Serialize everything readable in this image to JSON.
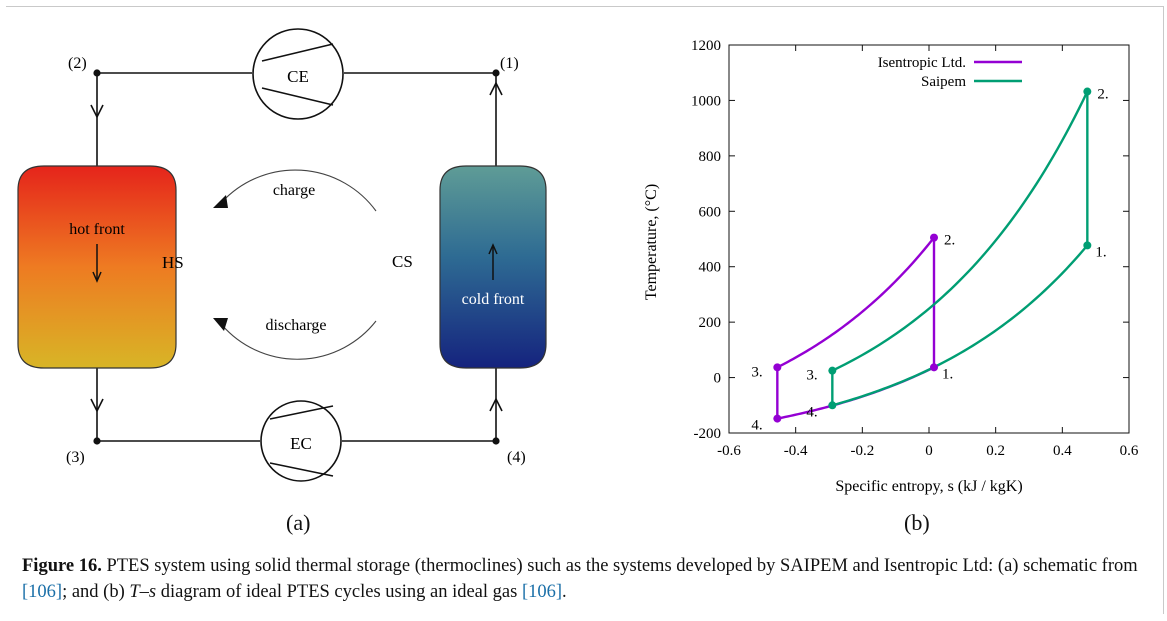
{
  "schematic": {
    "points": {
      "p1": "(1)",
      "p2": "(2)",
      "p3": "(3)",
      "p4": "(4)"
    },
    "ce": "CE",
    "ec": "EC",
    "hs": "HS",
    "cs": "CS",
    "hot_front": "hot front",
    "cold_front": "cold front",
    "charge": "charge",
    "discharge": "discharge",
    "colors": {
      "hot_top": "#e5241b",
      "hot_mid": "#ee7b22",
      "hot_bottom": "#d8b526",
      "cold_top": "#5f9c96",
      "cold_mid": "#2e6b93",
      "cold_bottom": "#15237e"
    }
  },
  "panel_labels": {
    "a": "(a)",
    "b": "(b)"
  },
  "chart_data": {
    "type": "line",
    "xlabel": "Specific entropy, s (kJ / kgK)",
    "ylabel": "Temperature, (°C)",
    "xlim": [
      -0.6,
      0.6
    ],
    "ylim": [
      -200,
      1200
    ],
    "xticks": [
      "-0.6",
      "-0.4",
      "-0.2",
      "0",
      "0.2",
      "0.4",
      "0.6"
    ],
    "yticks": [
      "-200",
      "0",
      "200",
      "400",
      "600",
      "800",
      "1000",
      "1200"
    ],
    "legend_position": "top-left",
    "series": [
      {
        "name": "Isentropic Ltd.",
        "color": "#9400d3",
        "states": [
          {
            "label": "1.",
            "s": 0.015,
            "T": 37
          },
          {
            "label": "2.",
            "s": 0.015,
            "T": 505
          },
          {
            "label": "3.",
            "s": -0.455,
            "T": 37
          },
          {
            "label": "4.",
            "s": -0.455,
            "T": -148
          }
        ]
      },
      {
        "name": "Saipem",
        "color": "#009e73",
        "states": [
          {
            "label": "1.",
            "s": 0.475,
            "T": 477
          },
          {
            "label": "2.",
            "s": 0.475,
            "T": 1032
          },
          {
            "label": "3.",
            "s": -0.29,
            "T": 25
          },
          {
            "label": "4.",
            "s": -0.29,
            "T": -100
          }
        ]
      }
    ]
  },
  "caption": {
    "figure_label": "Figure 16.",
    "text_1": " PTES system using solid thermal storage (thermoclines) such as the systems developed by SAIPEM and Isentropic Ltd: (a) schematic from ",
    "ref_1": "[106]",
    "text_2": "; and (b) ",
    "ts": "T–s",
    "text_3": " diagram of ideal PTES cycles using an ideal gas ",
    "ref_2": "[106]",
    "text_4": "."
  }
}
